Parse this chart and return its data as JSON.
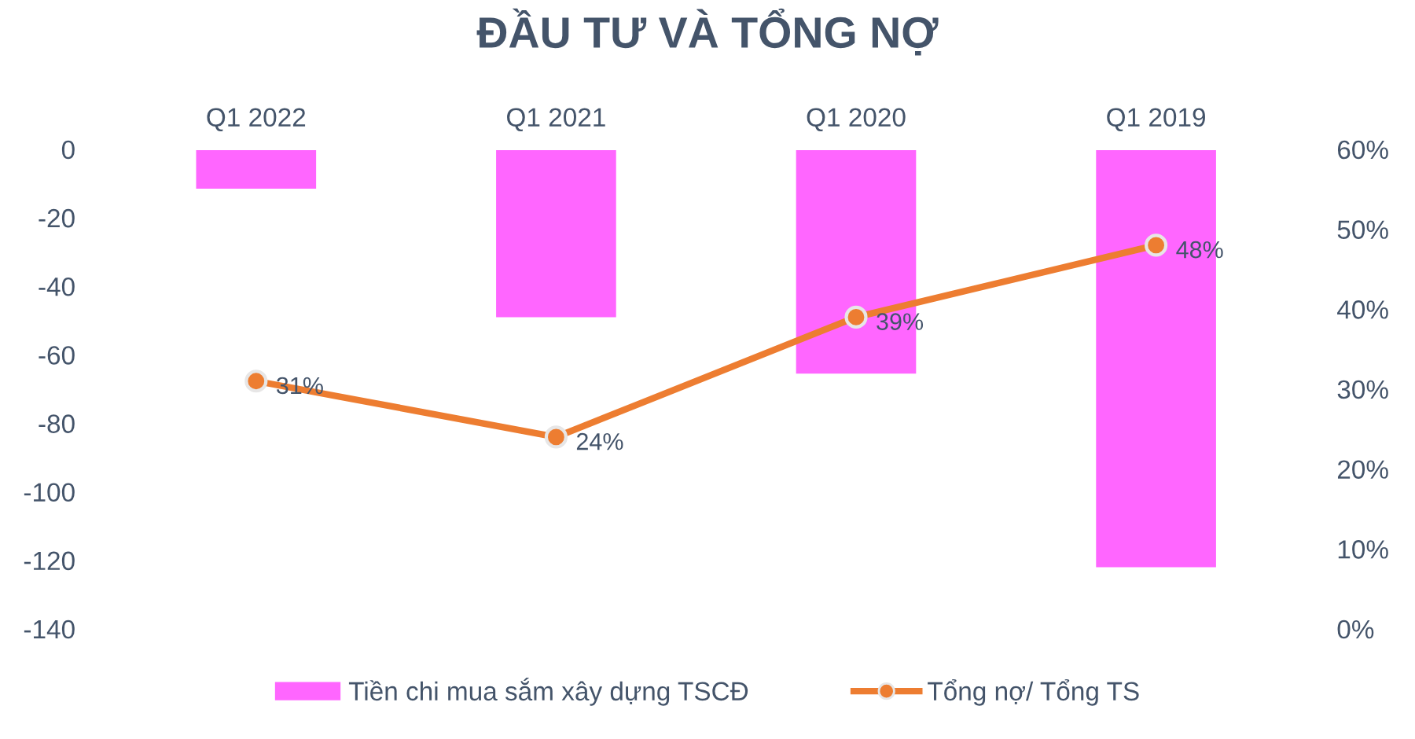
{
  "chart_data": {
    "type": "bar",
    "title": "ĐẦU TƯ VÀ TỔNG NỢ",
    "categories": [
      "Q1 2022",
      "Q1 2021",
      "Q1 2020",
      "Q1 2019"
    ],
    "series": [
      {
        "name": "Tiền chi mua sắm xây dựng TSCĐ",
        "color": "#ff66ff",
        "values": [
          -11.5,
          -49,
          -65.5,
          -122
        ]
      },
      {
        "name": "Tổng nợ/ Tổng TS",
        "type": "line",
        "axis": "y2",
        "color": "#ed7d31",
        "values": [
          31,
          24,
          39,
          48
        ],
        "value_labels": [
          "31%",
          "24%",
          "39%",
          "48%"
        ]
      }
    ],
    "ylim": [
      -140,
      0
    ],
    "yticks": [
      -140,
      -120,
      -100,
      -80,
      -60,
      -40,
      -20,
      0
    ],
    "y2lim": [
      0,
      60
    ],
    "y2ticks": [
      {
        "value": 0,
        "label": "0%"
      },
      {
        "value": 10,
        "label": "10%"
      },
      {
        "value": 20,
        "label": "20%"
      },
      {
        "value": 30,
        "label": "30%"
      },
      {
        "value": 40,
        "label": "40%"
      },
      {
        "value": 50,
        "label": "50%"
      },
      {
        "value": 60,
        "label": "60%"
      }
    ],
    "grid": false,
    "legend": "bottom",
    "marker": "circle",
    "line_style": "solid"
  }
}
